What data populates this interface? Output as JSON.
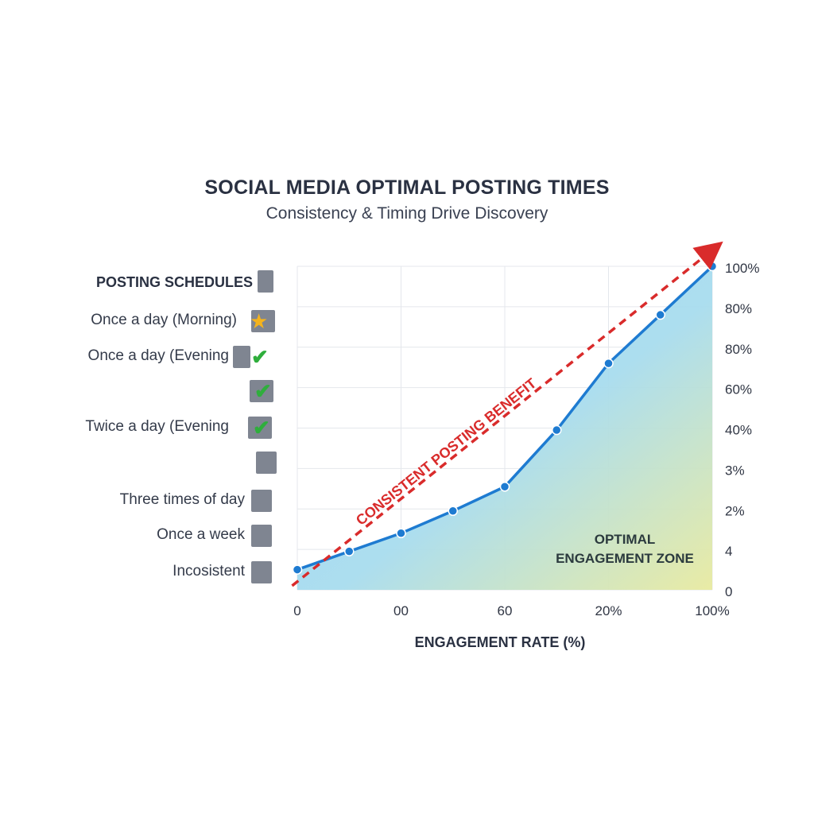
{
  "chart_data": {
    "type": "line",
    "title": "SOCIAL MEDIA OPTIMAL POSTING TIMES",
    "subtitle": "Consistency & Timing Drive Discovery",
    "xlabel": "ENGAGEMENT RATE (%)",
    "x_tick_labels": [
      "0",
      "00",
      "60",
      "20%",
      "100%"
    ],
    "y_tick_labels_right": [
      "100%",
      "80%",
      "80%",
      "60%",
      "40%",
      "3%",
      "2%",
      "4",
      "0"
    ],
    "ylim": [
      0,
      8
    ],
    "series": [
      {
        "color": "#1e7bd1",
        "points": [
          {
            "x": 0,
            "y": 0.5
          },
          {
            "x": 0.5,
            "y": 0.95
          },
          {
            "x": 1,
            "y": 1.4
          },
          {
            "x": 1.5,
            "y": 1.95
          },
          {
            "x": 2,
            "y": 2.55
          },
          {
            "x": 2.5,
            "y": 3.95
          },
          {
            "x": 3,
            "y": 5.6
          },
          {
            "x": 3.5,
            "y": 6.8
          },
          {
            "x": 4,
            "y": 8
          }
        ]
      }
    ],
    "trend_arrow": {
      "label": "CONSISTENT POSTING BENEFIT",
      "color": "#d92b2b",
      "from": [
        -0.05,
        0.1
      ],
      "to": [
        4.0,
        8.4
      ]
    },
    "zone_label": [
      "OPTIMAL",
      "ENGAGEMENT ZONE"
    ],
    "grid": true,
    "area_fill": true
  },
  "legend": {
    "header": "POSTING SCHEDULES",
    "items": [
      {
        "label": "Once a day (Morning)",
        "mark": "star"
      },
      {
        "label": "Once a day (Evening",
        "mark": "check"
      },
      {
        "label": "",
        "mark": "check"
      },
      {
        "label": "Twice a day (Evening",
        "mark": "check"
      },
      {
        "label": "",
        "mark": "none"
      },
      {
        "label": "Three times of day",
        "mark": "none"
      },
      {
        "label": "Once a week",
        "mark": "none"
      },
      {
        "label": "Incosistent",
        "mark": "none"
      }
    ]
  },
  "colors": {
    "line": "#1e7bd1",
    "trend": "#d92b2b",
    "area_top": "#8cd2f5",
    "area_bottom": "#e6e9a0",
    "check": "#2fae3c",
    "star": "#f4b31d"
  }
}
